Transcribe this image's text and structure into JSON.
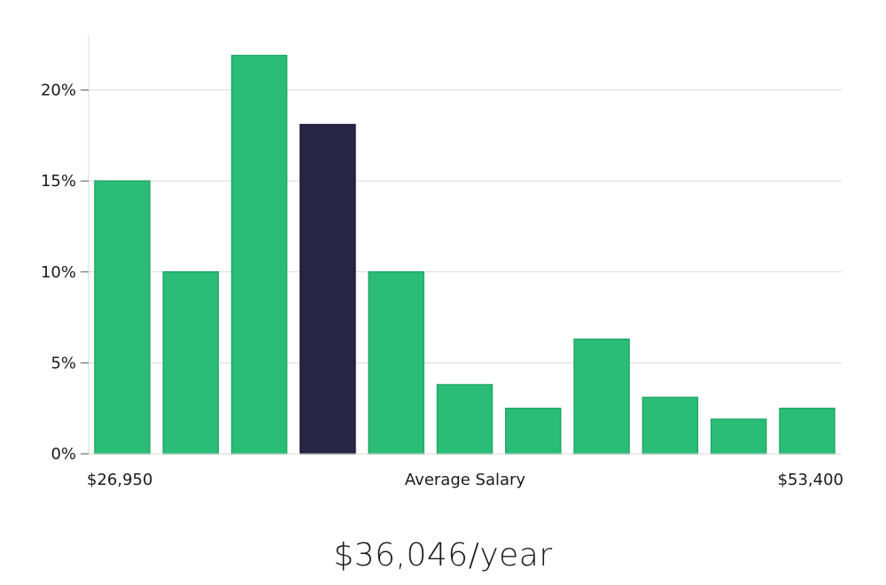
{
  "colors": {
    "bar": "#2bbd77",
    "bar_stroke": "#22a866",
    "highlight": "#282544",
    "highlight_stroke": "#1c1a36"
  },
  "chart_data": {
    "type": "bar",
    "title": "",
    "xlabel": "Average Salary",
    "ylabel": "",
    "x_min_label": "$26,950",
    "x_max_label": "$53,400",
    "ylim": [
      0,
      23
    ],
    "yticks": [
      0,
      5,
      10,
      15,
      20
    ],
    "ytick_labels": [
      "0%",
      "5%",
      "10%",
      "15%",
      "20%"
    ],
    "values": [
      15,
      10,
      21.9,
      18.1,
      10,
      3.8,
      2.5,
      6.3,
      3.1,
      1.9,
      2.5
    ],
    "highlight_index": 3
  },
  "salary_text": "$36,046/year"
}
